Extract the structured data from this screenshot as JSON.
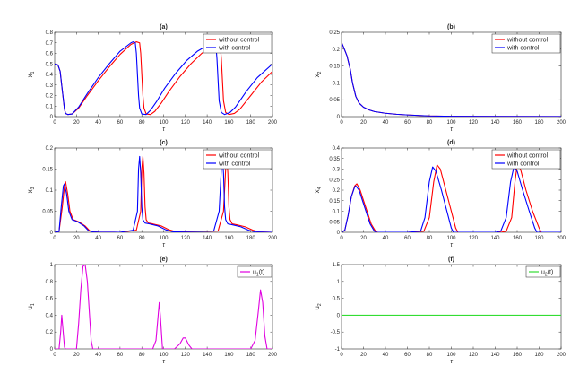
{
  "chart_data": [
    {
      "type": "line",
      "panel_label": "(a)",
      "ylabel": "x_1",
      "xlabel": "τ",
      "xlim": [
        0,
        200
      ],
      "ylim": [
        0,
        0.8
      ],
      "xticks": [
        0,
        20,
        40,
        60,
        80,
        100,
        120,
        140,
        160,
        180,
        200
      ],
      "yticks": [
        0,
        0.1,
        0.2,
        0.3,
        0.4,
        0.5,
        0.6,
        0.7,
        0.8
      ],
      "ytick_labels": [
        "0",
        "0.1",
        "0.2",
        "0.3",
        "0.4",
        "0.5",
        "0.6",
        "0.7",
        "0.8"
      ],
      "legend_position": "top-right",
      "series": [
        {
          "name": "without control",
          "color": "#ff0000",
          "x": [
            0,
            3,
            5,
            7,
            9,
            10,
            12,
            16,
            22,
            30,
            40,
            50,
            60,
            70,
            75,
            78,
            79,
            80,
            81,
            82,
            84,
            88,
            92,
            98,
            105,
            115,
            125,
            135,
            145,
            150,
            152,
            153,
            154,
            155,
            157,
            160,
            165,
            170,
            180,
            190,
            200
          ],
          "y": [
            0.5,
            0.49,
            0.43,
            0.25,
            0.07,
            0.03,
            0.02,
            0.025,
            0.08,
            0.2,
            0.34,
            0.47,
            0.59,
            0.685,
            0.71,
            0.7,
            0.6,
            0.4,
            0.2,
            0.08,
            0.025,
            0.02,
            0.05,
            0.13,
            0.24,
            0.38,
            0.5,
            0.6,
            0.67,
            0.69,
            0.68,
            0.55,
            0.35,
            0.15,
            0.04,
            0.02,
            0.03,
            0.07,
            0.2,
            0.33,
            0.43
          ]
        },
        {
          "name": "with control",
          "color": "#0000ff",
          "x": [
            0,
            3,
            5,
            7,
            9,
            10,
            12,
            16,
            22,
            30,
            40,
            50,
            60,
            70,
            72,
            74,
            75,
            76,
            77,
            78,
            80,
            84,
            88,
            94,
            101,
            111,
            121,
            131,
            141,
            146,
            148,
            149,
            150,
            151,
            153,
            156,
            161,
            166,
            176,
            186,
            200
          ],
          "y": [
            0.5,
            0.49,
            0.43,
            0.25,
            0.07,
            0.03,
            0.02,
            0.025,
            0.09,
            0.22,
            0.37,
            0.5,
            0.62,
            0.7,
            0.71,
            0.7,
            0.6,
            0.4,
            0.2,
            0.08,
            0.025,
            0.02,
            0.06,
            0.15,
            0.27,
            0.41,
            0.53,
            0.62,
            0.68,
            0.69,
            0.68,
            0.55,
            0.35,
            0.15,
            0.04,
            0.02,
            0.04,
            0.09,
            0.24,
            0.37,
            0.5
          ]
        }
      ]
    },
    {
      "type": "line",
      "panel_label": "(b)",
      "ylabel": "x_2",
      "xlabel": "τ",
      "xlim": [
        0,
        200
      ],
      "ylim": [
        0,
        0.25
      ],
      "xticks": [
        0,
        20,
        40,
        60,
        80,
        100,
        120,
        140,
        160,
        180,
        200
      ],
      "yticks": [
        0,
        0.05,
        0.1,
        0.15,
        0.2,
        0.25
      ],
      "ytick_labels": [
        "0",
        "0.05",
        "0.1",
        "0.15",
        "0.2",
        "0.25"
      ],
      "legend_position": "top-right",
      "series": [
        {
          "name": "without control",
          "color": "#ff0000",
          "x": [
            0,
            2,
            5,
            8,
            10,
            13,
            16,
            20,
            25,
            30,
            40,
            50,
            60,
            80,
            100,
            140,
            200
          ],
          "y": [
            0.22,
            0.205,
            0.18,
            0.14,
            0.1,
            0.06,
            0.04,
            0.028,
            0.02,
            0.015,
            0.01,
            0.007,
            0.005,
            0.002,
            0.001,
            0.0005,
            0.0003
          ]
        },
        {
          "name": "with control",
          "color": "#0000ff",
          "x": [
            0,
            2,
            5,
            8,
            10,
            13,
            16,
            20,
            25,
            30,
            40,
            50,
            60,
            80,
            100,
            140,
            200
          ],
          "y": [
            0.22,
            0.205,
            0.18,
            0.14,
            0.1,
            0.06,
            0.04,
            0.028,
            0.02,
            0.015,
            0.01,
            0.007,
            0.005,
            0.002,
            0.001,
            0.0005,
            0.0003
          ]
        }
      ]
    },
    {
      "type": "line",
      "panel_label": "(c)",
      "ylabel": "x_3",
      "xlabel": "τ",
      "xlim": [
        0,
        200
      ],
      "ylim": [
        0,
        0.2
      ],
      "xticks": [
        0,
        20,
        40,
        60,
        80,
        100,
        120,
        140,
        160,
        180,
        200
      ],
      "yticks": [
        0,
        0.05,
        0.1,
        0.15,
        0.2
      ],
      "ytick_labels": [
        "0",
        "0.05",
        "0.1",
        "0.15",
        "0.2"
      ],
      "legend_position": "top-right",
      "series": [
        {
          "name": "without control",
          "color": "#ff0000",
          "x": [
            0,
            4,
            7,
            9,
            10,
            12,
            14,
            17,
            22,
            28,
            32,
            36,
            40,
            60,
            75,
            79,
            80,
            81,
            82,
            83,
            84,
            86,
            90,
            98,
            105,
            112,
            150,
            155,
            157,
            158,
            159,
            160,
            161,
            163,
            167,
            175,
            182,
            188,
            200
          ],
          "y": [
            0,
            0.002,
            0.06,
            0.11,
            0.12,
            0.09,
            0.05,
            0.03,
            0.025,
            0.015,
            0.004,
            0.001,
            0.0005,
            0,
            0.005,
            0.05,
            0.15,
            0.18,
            0.14,
            0.06,
            0.03,
            0.022,
            0.02,
            0.015,
            0.006,
            0.001,
            0.003,
            0.05,
            0.15,
            0.18,
            0.14,
            0.06,
            0.03,
            0.02,
            0.018,
            0.013,
            0.005,
            0.001,
            0
          ]
        },
        {
          "name": "with control",
          "color": "#0000ff",
          "x": [
            0,
            4,
            6,
            8,
            9,
            11,
            13,
            16,
            21,
            27,
            31,
            35,
            40,
            60,
            72,
            76,
            77,
            78,
            79,
            80,
            81,
            83,
            87,
            95,
            102,
            109,
            146,
            151,
            153,
            154,
            155,
            156,
            157,
            159,
            163,
            171,
            178,
            184,
            200
          ],
          "y": [
            0,
            0.002,
            0.06,
            0.11,
            0.115,
            0.09,
            0.05,
            0.03,
            0.025,
            0.015,
            0.004,
            0.001,
            0.0005,
            0,
            0.005,
            0.05,
            0.15,
            0.18,
            0.14,
            0.06,
            0.03,
            0.022,
            0.02,
            0.015,
            0.006,
            0.001,
            0.003,
            0.05,
            0.15,
            0.18,
            0.14,
            0.06,
            0.03,
            0.02,
            0.018,
            0.013,
            0.005,
            0.001,
            0
          ]
        }
      ]
    },
    {
      "type": "line",
      "panel_label": "(d)",
      "ylabel": "x_4",
      "xlabel": "τ",
      "xlim": [
        0,
        200
      ],
      "ylim": [
        0,
        0.4
      ],
      "xticks": [
        0,
        20,
        40,
        60,
        80,
        100,
        120,
        140,
        160,
        180,
        200
      ],
      "yticks": [
        0,
        0.05,
        0.1,
        0.15,
        0.2,
        0.25,
        0.3,
        0.35,
        0.4
      ],
      "ytick_labels": [
        "0",
        "0.05",
        "0.1",
        "0.15",
        "0.2",
        "0.25",
        "0.3",
        "0.35",
        "0.4"
      ],
      "legend_position": "top-right",
      "series": [
        {
          "name": "without control",
          "color": "#ff0000",
          "x": [
            0,
            3,
            6,
            9,
            12,
            14,
            17,
            22,
            27,
            31,
            33,
            60,
            75,
            80,
            84,
            87,
            90,
            95,
            100,
            104,
            106,
            145,
            150,
            155,
            158,
            160,
            163,
            168,
            174,
            180,
            182,
            200
          ],
          "y": [
            0,
            0.01,
            0.08,
            0.17,
            0.22,
            0.23,
            0.2,
            0.12,
            0.04,
            0.005,
            0,
            0,
            0.005,
            0.07,
            0.24,
            0.32,
            0.3,
            0.2,
            0.1,
            0.02,
            0,
            0,
            0.005,
            0.07,
            0.24,
            0.32,
            0.3,
            0.2,
            0.1,
            0.02,
            0,
            0
          ]
        },
        {
          "name": "with control",
          "color": "#0000ff",
          "x": [
            0,
            3,
            6,
            9,
            12,
            13,
            16,
            21,
            26,
            30,
            32,
            60,
            72,
            76,
            80,
            83,
            86,
            91,
            96,
            100,
            102,
            140,
            145,
            150,
            154,
            157,
            160,
            165,
            171,
            176,
            178,
            200
          ],
          "y": [
            0,
            0.01,
            0.08,
            0.17,
            0.215,
            0.22,
            0.2,
            0.12,
            0.04,
            0.005,
            0,
            0,
            0.005,
            0.07,
            0.24,
            0.31,
            0.29,
            0.2,
            0.1,
            0.02,
            0,
            0,
            0.005,
            0.07,
            0.24,
            0.31,
            0.29,
            0.2,
            0.1,
            0.02,
            0,
            0
          ]
        }
      ]
    },
    {
      "type": "line",
      "panel_label": "(e)",
      "ylabel": "u_1",
      "xlabel": "τ",
      "xlim": [
        0,
        200
      ],
      "ylim": [
        0,
        1
      ],
      "xticks": [
        0,
        20,
        40,
        60,
        80,
        100,
        120,
        140,
        160,
        180,
        200
      ],
      "yticks": [
        0,
        0.2,
        0.4,
        0.6,
        0.8,
        1
      ],
      "ytick_labels": [
        "0",
        "0.2",
        "0.4",
        "0.6",
        "0.8",
        "1"
      ],
      "legend_position": "top-right",
      "series": [
        {
          "name": "u_1(t)",
          "color": "#e000e0",
          "x": [
            0,
            4,
            5.5,
            6.5,
            7.5,
            9,
            10,
            20,
            22,
            24,
            26,
            28,
            30,
            32,
            33.5,
            35,
            40,
            90,
            93,
            95,
            96,
            97,
            99,
            105,
            110,
            115,
            118,
            120,
            123,
            126,
            130,
            180,
            184,
            187,
            189,
            191,
            193,
            195,
            200
          ],
          "y": [
            0,
            0,
            0.2,
            0.4,
            0.25,
            0.02,
            0,
            0,
            0.3,
            0.7,
            0.98,
            1,
            0.8,
            0.4,
            0.1,
            0,
            0,
            0,
            0.1,
            0.4,
            0.55,
            0.4,
            0,
            0,
            0,
            0.06,
            0.13,
            0.13,
            0.05,
            0,
            0,
            0,
            0.1,
            0.45,
            0.7,
            0.55,
            0.15,
            0,
            0
          ]
        }
      ]
    },
    {
      "type": "line",
      "panel_label": "(f)",
      "ylabel": "u_2",
      "xlabel": "τ",
      "xlim": [
        0,
        200
      ],
      "ylim": [
        -1,
        1.5
      ],
      "xticks": [
        0,
        20,
        40,
        60,
        80,
        100,
        120,
        140,
        160,
        180,
        200
      ],
      "yticks": [
        -1,
        -0.5,
        0,
        0.5,
        1,
        1.5
      ],
      "ytick_labels": [
        "-1",
        "-0.5",
        "0",
        "0.5",
        "1",
        "1.5"
      ],
      "legend_position": "top-right",
      "series": [
        {
          "name": "u_2(t)",
          "color": "#33dd33",
          "x": [
            0,
            200
          ],
          "y": [
            0,
            0
          ]
        }
      ]
    }
  ]
}
